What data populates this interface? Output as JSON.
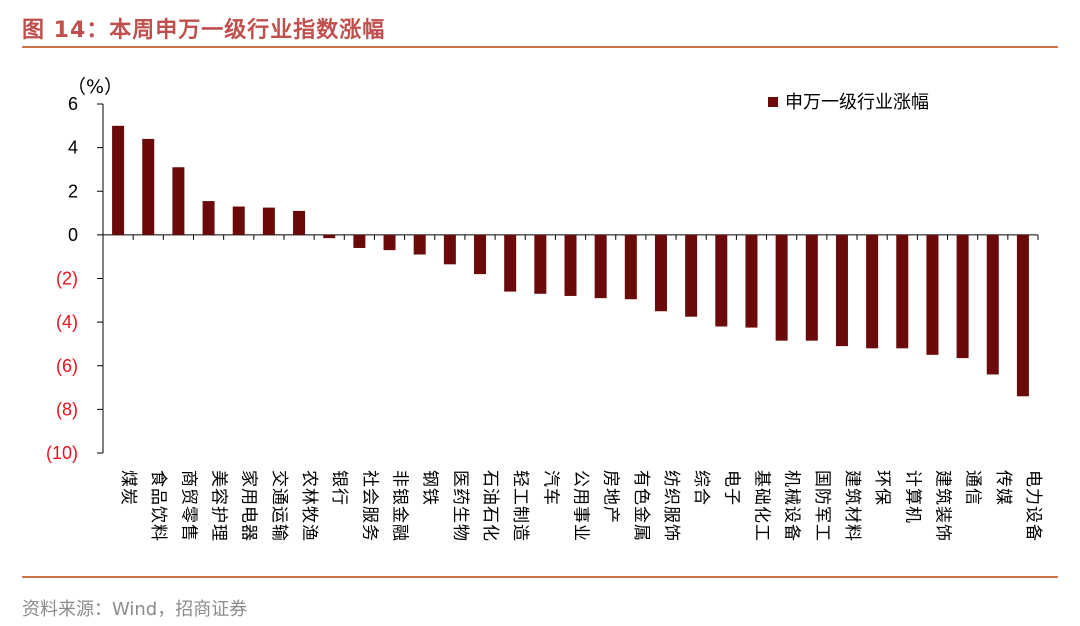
{
  "figure": {
    "title": "图 14：本周申万一级行业指数涨幅",
    "source": "资料来源：Wind，招商证券"
  },
  "colors": {
    "bar": "#6B0A0A",
    "negative_tick": "#E8141B",
    "accent": "#C0504D"
  },
  "chart_data": {
    "type": "bar",
    "title": "",
    "xlabel": "",
    "ylabel": "（%）",
    "ylim": [
      -10,
      6
    ],
    "yticks": [
      6,
      4,
      2,
      0,
      -2,
      -4,
      -6,
      -8,
      -10
    ],
    "ytick_labels": [
      "6",
      "4",
      "2",
      "0",
      "(2)",
      "(4)",
      "(6)",
      "(8)",
      "(10)"
    ],
    "legend": "top-right",
    "grid": false,
    "categories": [
      "煤炭",
      "食品饮料",
      "商贸零售",
      "美容护理",
      "家用电器",
      "交通运输",
      "农林牧渔",
      "银行",
      "社会服务",
      "非银金融",
      "钢铁",
      "医药生物",
      "石油石化",
      "轻工制造",
      "汽车",
      "公用事业",
      "房地产",
      "有色金属",
      "纺织服饰",
      "综合",
      "电子",
      "基础化工",
      "机械设备",
      "国防军工",
      "建筑材料",
      "环保",
      "计算机",
      "建筑装饰",
      "通信",
      "传媒",
      "电力设备"
    ],
    "series": [
      {
        "name": "申万一级行业涨幅",
        "values": [
          5.0,
          4.4,
          3.1,
          1.55,
          1.3,
          1.25,
          1.1,
          -0.15,
          -0.6,
          -0.7,
          -0.9,
          -1.35,
          -1.8,
          -2.6,
          -2.7,
          -2.8,
          -2.9,
          -2.95,
          -3.5,
          -3.75,
          -4.2,
          -4.25,
          -4.85,
          -4.85,
          -5.1,
          -5.2,
          -5.2,
          -5.5,
          -5.65,
          -6.4,
          -7.4
        ]
      }
    ]
  }
}
